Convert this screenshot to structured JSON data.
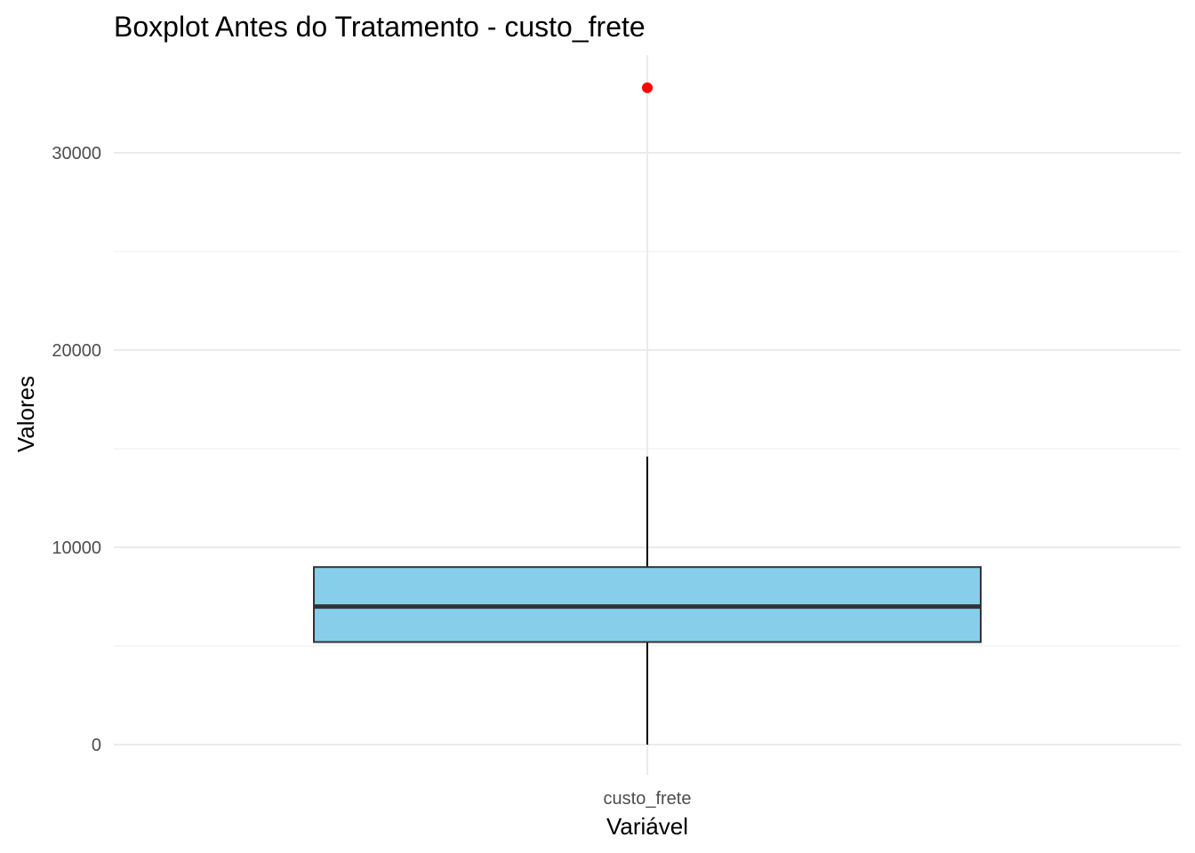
{
  "chart_data": {
    "type": "boxplot",
    "title": "Boxplot Antes do Tratamento - custo_frete",
    "xlabel": "Variável",
    "ylabel": "Valores",
    "categories": [
      "custo_frete"
    ],
    "y_ticks": [
      0,
      10000,
      20000,
      30000
    ],
    "ylim": [
      0,
      35000
    ],
    "grid": true,
    "boxes": [
      {
        "category": "custo_frete",
        "whisker_low": 0,
        "q1": 5200,
        "median": 7000,
        "q3": 9000,
        "whisker_high": 14600,
        "outliers": [
          33300
        ]
      }
    ],
    "colors": {
      "box_fill": "#87ceeb",
      "box_stroke": "#333333",
      "median": "#333333",
      "whisker": "#000000",
      "outlier": "#ff0000"
    }
  }
}
